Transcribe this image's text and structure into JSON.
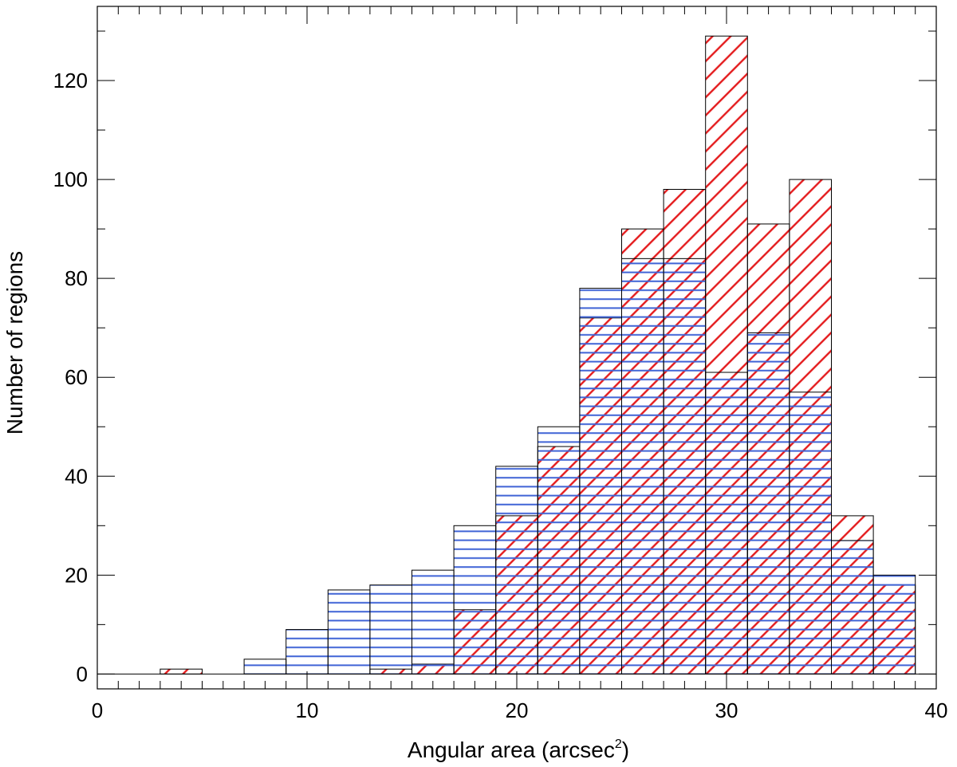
{
  "chart_data": {
    "type": "bar",
    "xlabel": "Angular area (arcsec",
    "xlabel_sup": "2",
    "xlabel_close": ")",
    "ylabel": "Number of regions",
    "xlim": [
      0,
      40
    ],
    "ylim": [
      -3,
      135
    ],
    "xticks": [
      0,
      10,
      20,
      30,
      40
    ],
    "yticks": [
      0,
      20,
      40,
      60,
      80,
      100,
      120
    ],
    "bin_width": 2,
    "bin_starts": [
      3,
      5,
      7,
      9,
      11,
      13,
      15,
      17,
      19,
      21,
      23,
      25,
      27,
      29,
      31,
      33,
      35,
      37
    ],
    "series": [
      {
        "hatch": "horizontal",
        "color": "#3f63d6",
        "values": [
          0,
          0,
          3,
          9,
          17,
          18,
          21,
          30,
          42,
          50,
          78,
          84,
          84,
          61,
          69,
          57,
          27,
          20
        ]
      },
      {
        "hatch": "diagonal",
        "color": "#e41a1c",
        "values": [
          1,
          0,
          0,
          0,
          0,
          1,
          2,
          13,
          32,
          46,
          72,
          90,
          98,
          129,
          91,
          100,
          32,
          18
        ]
      }
    ],
    "grid": false,
    "legend": "none"
  }
}
